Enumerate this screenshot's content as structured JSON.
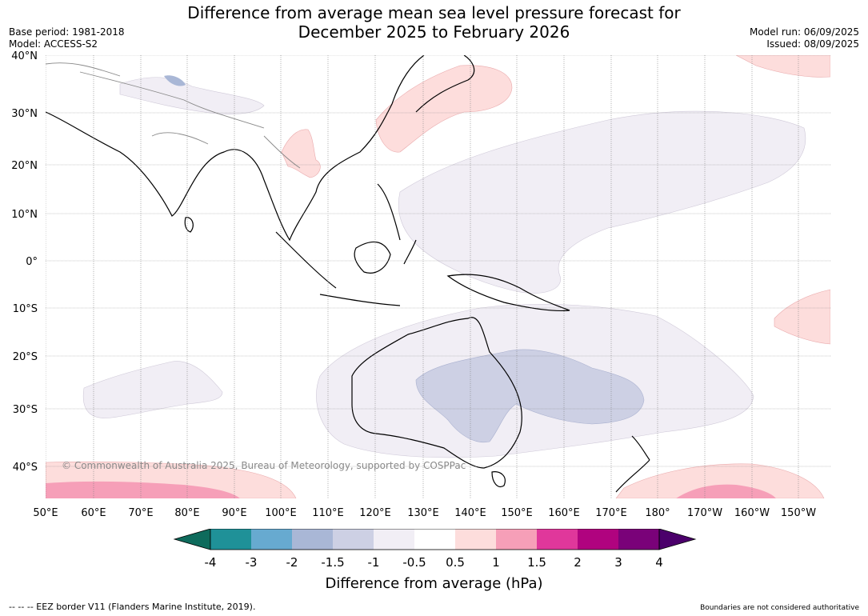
{
  "title_line1": "Difference from average mean sea level pressure forecast for",
  "title_line2": "December 2025 to February 2026",
  "base_period": "Base period: 1981-2018",
  "model": "Model: ACCESS-S2",
  "model_run": "Model run: 06/09/2025",
  "issued": "Issued: 08/09/2025",
  "copyright": "© Commonwealth of Australia 2025, Bureau of Meteorology, supported by COSPPac",
  "lat_labels": [
    "40°N",
    "30°N",
    "20°N",
    "10°N",
    "0°",
    "10°S",
    "20°S",
    "30°S",
    "40°S"
  ],
  "lon_labels": [
    "50°E",
    "60°E",
    "70°E",
    "80°E",
    "90°E",
    "100°E",
    "110°E",
    "120°E",
    "130°E",
    "140°E",
    "150°E",
    "160°E",
    "170°E",
    "180°",
    "170°W",
    "160°W",
    "150°W"
  ],
  "colorbar": {
    "title": "Difference from average (hPa)",
    "tick_labels": [
      "-4",
      "-3",
      "-2",
      "-1.5",
      "-1",
      "-0.5",
      "0.5",
      "1",
      "1.5",
      "2",
      "3",
      "4"
    ],
    "colors": [
      "#0e6b5c",
      "#1f9198",
      "#67aad0",
      "#a9b7d6",
      "#cdd0e4",
      "#f1eef5",
      "#ffffff",
      "#fddddc",
      "#f69fb8",
      "#e0379b",
      "#b0037f",
      "#7a0279",
      "#4b006b"
    ]
  },
  "footer_left": "--  --  -- EEZ border V11 (Flanders Marine Institute, 2019).",
  "footer_right": "Boundaries are not considered authoritative"
}
